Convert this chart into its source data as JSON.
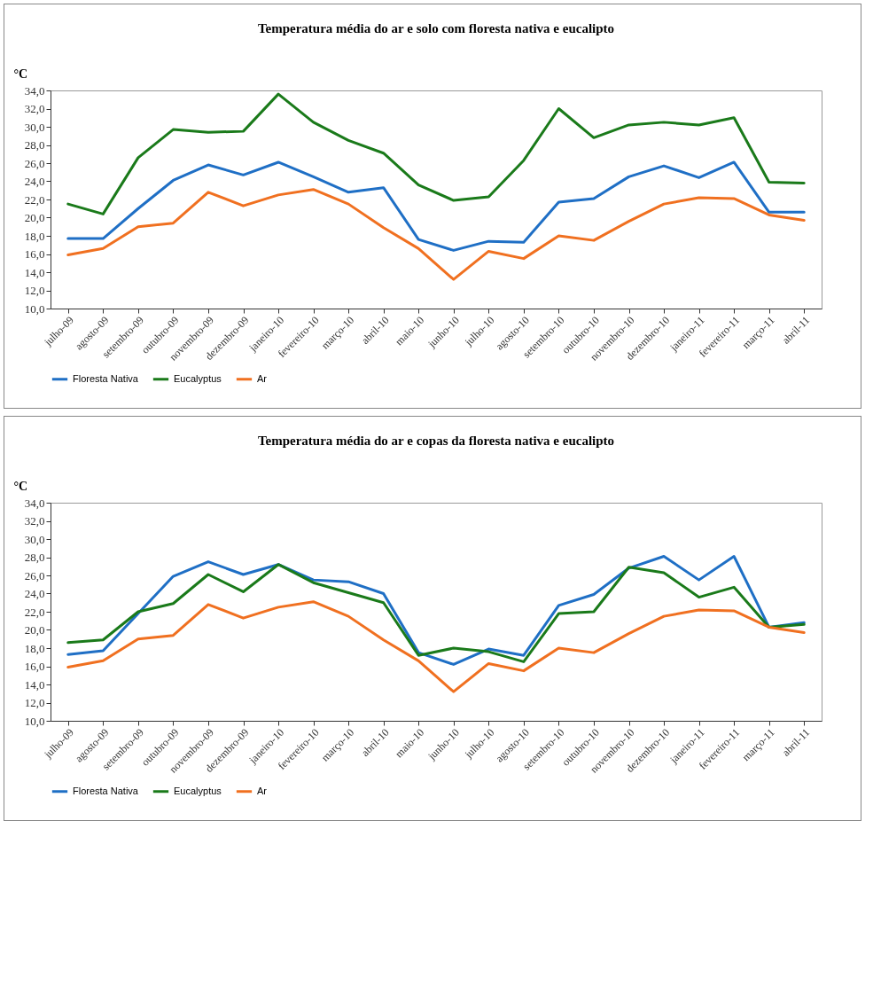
{
  "chart_data": [
    {
      "type": "line",
      "title": "Temperatura  média do ar e solo com floresta nativa e eucalipto",
      "ylabel": "°C",
      "categories": [
        "julho-09",
        "agosto-09",
        "setembro-09",
        "outubro-09",
        "novembro-09",
        "dezembro-09",
        "janeiro-10",
        "fevereiro-10",
        "março-10",
        "abril-10",
        "maio-10",
        "junho-10",
        "julho-10",
        "agosto-10",
        "setembro-10",
        "outubro-10",
        "novembro-10",
        "dezembro-10",
        "janeiro-11",
        "fevereiro-11",
        "março-11",
        "abril-11"
      ],
      "series": [
        {
          "name": "Floresta Nativa",
          "color": "#1f6fc5",
          "values": [
            17.7,
            17.7,
            21.0,
            24.1,
            25.8,
            24.7,
            26.1,
            24.5,
            22.8,
            23.3,
            17.6,
            16.4,
            17.4,
            17.3,
            21.7,
            22.1,
            24.5,
            25.7,
            24.4,
            26.1,
            20.6,
            20.6
          ]
        },
        {
          "name": "Eucalyptus",
          "color": "#1a7a1a",
          "values": [
            21.5,
            20.4,
            26.6,
            29.7,
            29.4,
            29.5,
            33.6,
            30.5,
            28.5,
            27.1,
            23.6,
            21.9,
            22.3,
            26.3,
            32.0,
            28.8,
            30.2,
            30.5,
            30.2,
            31.0,
            23.9,
            23.8
          ]
        },
        {
          "name": "Ar",
          "color": "#f07020",
          "values": [
            15.9,
            16.6,
            19.0,
            19.4,
            22.8,
            21.3,
            22.5,
            23.1,
            21.5,
            18.9,
            16.6,
            13.2,
            16.3,
            15.5,
            18.0,
            17.5,
            19.6,
            21.5,
            22.2,
            22.1,
            20.3,
            19.7
          ]
        }
      ],
      "ylim": [
        10,
        34
      ],
      "yticks": [
        {
          "value": 10,
          "label": "10,0"
        },
        {
          "value": 12,
          "label": "12,0"
        },
        {
          "value": 14,
          "label": "14,0"
        },
        {
          "value": 16,
          "label": "16,0"
        },
        {
          "value": 18,
          "label": "18,0"
        },
        {
          "value": 20,
          "label": "20,0"
        },
        {
          "value": 22,
          "label": "22,0"
        },
        {
          "value": 24,
          "label": "24,0"
        },
        {
          "value": 26,
          "label": "26,0"
        },
        {
          "value": 28,
          "label": "28,0"
        },
        {
          "value": 30,
          "label": "30,0"
        },
        {
          "value": 32,
          "label": "32,0"
        },
        {
          "value": 34,
          "label": "34,0"
        }
      ],
      "legend": "bottom",
      "grid": false
    },
    {
      "type": "line",
      "title": "Temperatura  média do ar e copas da floresta nativa  e eucalipto",
      "ylabel": "°C",
      "categories": [
        "julho-09",
        "agosto-09",
        "setembro-09",
        "outubro-09",
        "novembro-09",
        "dezembro-09",
        "janeiro-10",
        "fevereiro-10",
        "março-10",
        "abril-10",
        "maio-10",
        "junho-10",
        "julho-10",
        "agosto-10",
        "setembro-10",
        "outubro-10",
        "novembro-10",
        "dezembro-10",
        "janeiro-11",
        "fevereiro-11",
        "março-11",
        "abril-11"
      ],
      "series": [
        {
          "name": "Floresta Nativa",
          "color": "#1f6fc5",
          "values": [
            17.3,
            17.7,
            21.8,
            25.9,
            27.5,
            26.1,
            27.2,
            25.5,
            25.3,
            24.0,
            17.5,
            16.2,
            17.9,
            17.2,
            22.7,
            23.9,
            26.8,
            28.1,
            25.5,
            28.1,
            20.3,
            20.8
          ]
        },
        {
          "name": "Eucalyptus",
          "color": "#1a7a1a",
          "values": [
            18.6,
            18.9,
            22.0,
            22.9,
            26.1,
            24.2,
            27.2,
            25.2,
            24.1,
            23.0,
            17.2,
            18.0,
            17.6,
            16.5,
            21.8,
            22.0,
            26.9,
            26.3,
            23.6,
            24.7,
            20.3,
            20.6
          ]
        },
        {
          "name": "Ar",
          "color": "#f07020",
          "values": [
            15.9,
            16.6,
            19.0,
            19.4,
            22.8,
            21.3,
            22.5,
            23.1,
            21.5,
            18.9,
            16.6,
            13.2,
            16.3,
            15.5,
            18.0,
            17.5,
            19.6,
            21.5,
            22.2,
            22.1,
            20.3,
            19.7
          ]
        }
      ],
      "ylim": [
        10,
        34
      ],
      "yticks": [
        {
          "value": 10,
          "label": "10,0"
        },
        {
          "value": 12,
          "label": "12,0"
        },
        {
          "value": 14,
          "label": "14,0"
        },
        {
          "value": 16,
          "label": "16,0"
        },
        {
          "value": 18,
          "label": "18,0"
        },
        {
          "value": 20,
          "label": "20,0"
        },
        {
          "value": 22,
          "label": "22,0"
        },
        {
          "value": 24,
          "label": "24,0"
        },
        {
          "value": 26,
          "label": "26,0"
        },
        {
          "value": 28,
          "label": "28,0"
        },
        {
          "value": 30,
          "label": "30,0"
        },
        {
          "value": 32,
          "label": "32,0"
        },
        {
          "value": 34,
          "label": "34,0"
        }
      ],
      "legend": "bottom",
      "grid": false
    }
  ]
}
